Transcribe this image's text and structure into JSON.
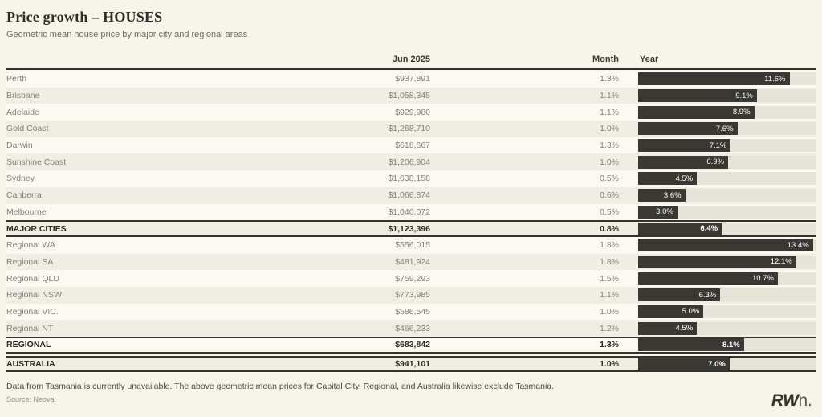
{
  "header": {
    "title": "Price growth – HOUSES",
    "subtitle": "Geometric mean house price by major city and regional areas"
  },
  "table": {
    "columns": {
      "date": "Jun 2025",
      "month": "Month",
      "year": "Year"
    },
    "rows": [
      {
        "name": "Perth",
        "price": "$937,891",
        "month": "1.3%",
        "year": "11.6%",
        "year_value": 11.6,
        "total": false
      },
      {
        "name": "Brisbane",
        "price": "$1,058,345",
        "month": "1.1%",
        "year": "9.1%",
        "year_value": 9.1,
        "total": false
      },
      {
        "name": "Adelaide",
        "price": "$929,980",
        "month": "1.1%",
        "year": "8.9%",
        "year_value": 8.9,
        "total": false
      },
      {
        "name": "Gold Coast",
        "price": "$1,268,710",
        "month": "1.0%",
        "year": "7.6%",
        "year_value": 7.6,
        "total": false
      },
      {
        "name": "Darwin",
        "price": "$618,667",
        "month": "1.3%",
        "year": "7.1%",
        "year_value": 7.1,
        "total": false
      },
      {
        "name": "Sunshine Coast",
        "price": "$1,206,904",
        "month": "1.0%",
        "year": "6.9%",
        "year_value": 6.9,
        "total": false
      },
      {
        "name": "Sydney",
        "price": "$1,638,158",
        "month": "0.5%",
        "year": "4.5%",
        "year_value": 4.5,
        "total": false
      },
      {
        "name": "Canberra",
        "price": "$1,066,874",
        "month": "0.6%",
        "year": "3.6%",
        "year_value": 3.6,
        "total": false
      },
      {
        "name": "Melbourne",
        "price": "$1,040,072",
        "month": "0.5%",
        "year": "3.0%",
        "year_value": 3.0,
        "total": false
      },
      {
        "name": "MAJOR CITIES",
        "price": "$1,123,396",
        "month": "0.8%",
        "year": "6.4%",
        "year_value": 6.4,
        "total": true
      },
      {
        "name": "Regional WA",
        "price": "$556,015",
        "month": "1.8%",
        "year": "13.4%",
        "year_value": 13.4,
        "total": false
      },
      {
        "name": "Regional SA",
        "price": "$481,924",
        "month": "1.8%",
        "year": "12.1%",
        "year_value": 12.1,
        "total": false
      },
      {
        "name": "Regional QLD",
        "price": "$759,293",
        "month": "1.5%",
        "year": "10.7%",
        "year_value": 10.7,
        "total": false
      },
      {
        "name": "Regional NSW",
        "price": "$773,985",
        "month": "1.1%",
        "year": "6.3%",
        "year_value": 6.3,
        "total": false
      },
      {
        "name": "Regional VIC.",
        "price": "$586,545",
        "month": "1.0%",
        "year": "5.0%",
        "year_value": 5.0,
        "total": false
      },
      {
        "name": "Regional NT",
        "price": "$466,233",
        "month": "1.2%",
        "year": "4.5%",
        "year_value": 4.5,
        "total": false
      },
      {
        "name": "REGIONAL",
        "price": "$683,842",
        "month": "1.3%",
        "year": "8.1%",
        "year_value": 8.1,
        "total": true
      },
      {
        "name": "AUSTRALIA",
        "price": "$941,101",
        "month": "1.0%",
        "year": "7.0%",
        "year_value": 7.0,
        "total": true
      }
    ]
  },
  "footer": {
    "note": "Data from Tasmania is currently unavailable. The above geometric mean prices for Capital City, Regional, and Australia likewise exclude Tasmania.",
    "source": "Source: Neoval",
    "logo": {
      "bold": "RW",
      "light": "n."
    }
  },
  "colors": {
    "background": "#f7f4e9",
    "row_light": "#fbf9f1",
    "row_dark": "#f0eee3",
    "bar": "#3a3833",
    "bar_track": "#e6e4d9",
    "text_dark": "#2e2d27",
    "text_gray": "#82817a"
  },
  "chart_data": {
    "type": "bar",
    "orientation": "horizontal",
    "title": "Price growth – HOUSES",
    "subtitle": "Geometric mean house price by major city and regional areas",
    "categories": [
      "Perth",
      "Brisbane",
      "Adelaide",
      "Gold Coast",
      "Darwin",
      "Sunshine Coast",
      "Sydney",
      "Canberra",
      "Melbourne",
      "MAJOR CITIES",
      "Regional WA",
      "Regional SA",
      "Regional QLD",
      "Regional NSW",
      "Regional VIC.",
      "Regional NT",
      "REGIONAL",
      "AUSTRALIA"
    ],
    "series": [
      {
        "name": "Jun 2025 geometric mean price ($)",
        "values": [
          937891,
          1058345,
          929980,
          1268710,
          618667,
          1206904,
          1638158,
          1066874,
          1040072,
          1123396,
          556015,
          481924,
          759293,
          773985,
          586545,
          466233,
          683842,
          941101
        ]
      },
      {
        "name": "Month change (%)",
        "values": [
          1.3,
          1.1,
          1.1,
          1.0,
          1.3,
          1.0,
          0.5,
          0.6,
          0.5,
          0.8,
          1.8,
          1.8,
          1.5,
          1.1,
          1.0,
          1.2,
          1.3,
          1.0
        ]
      },
      {
        "name": "Year change (%)",
        "values": [
          11.6,
          9.1,
          8.9,
          7.6,
          7.1,
          6.9,
          4.5,
          3.6,
          3.0,
          6.4,
          13.4,
          12.1,
          10.7,
          6.3,
          5.0,
          4.5,
          8.1,
          7.0
        ]
      }
    ],
    "bar_series_plotted": "Year change (%)",
    "xlim": [
      0,
      13.6
    ],
    "grid": false,
    "legend": false,
    "bar_labels": "inside-end"
  }
}
